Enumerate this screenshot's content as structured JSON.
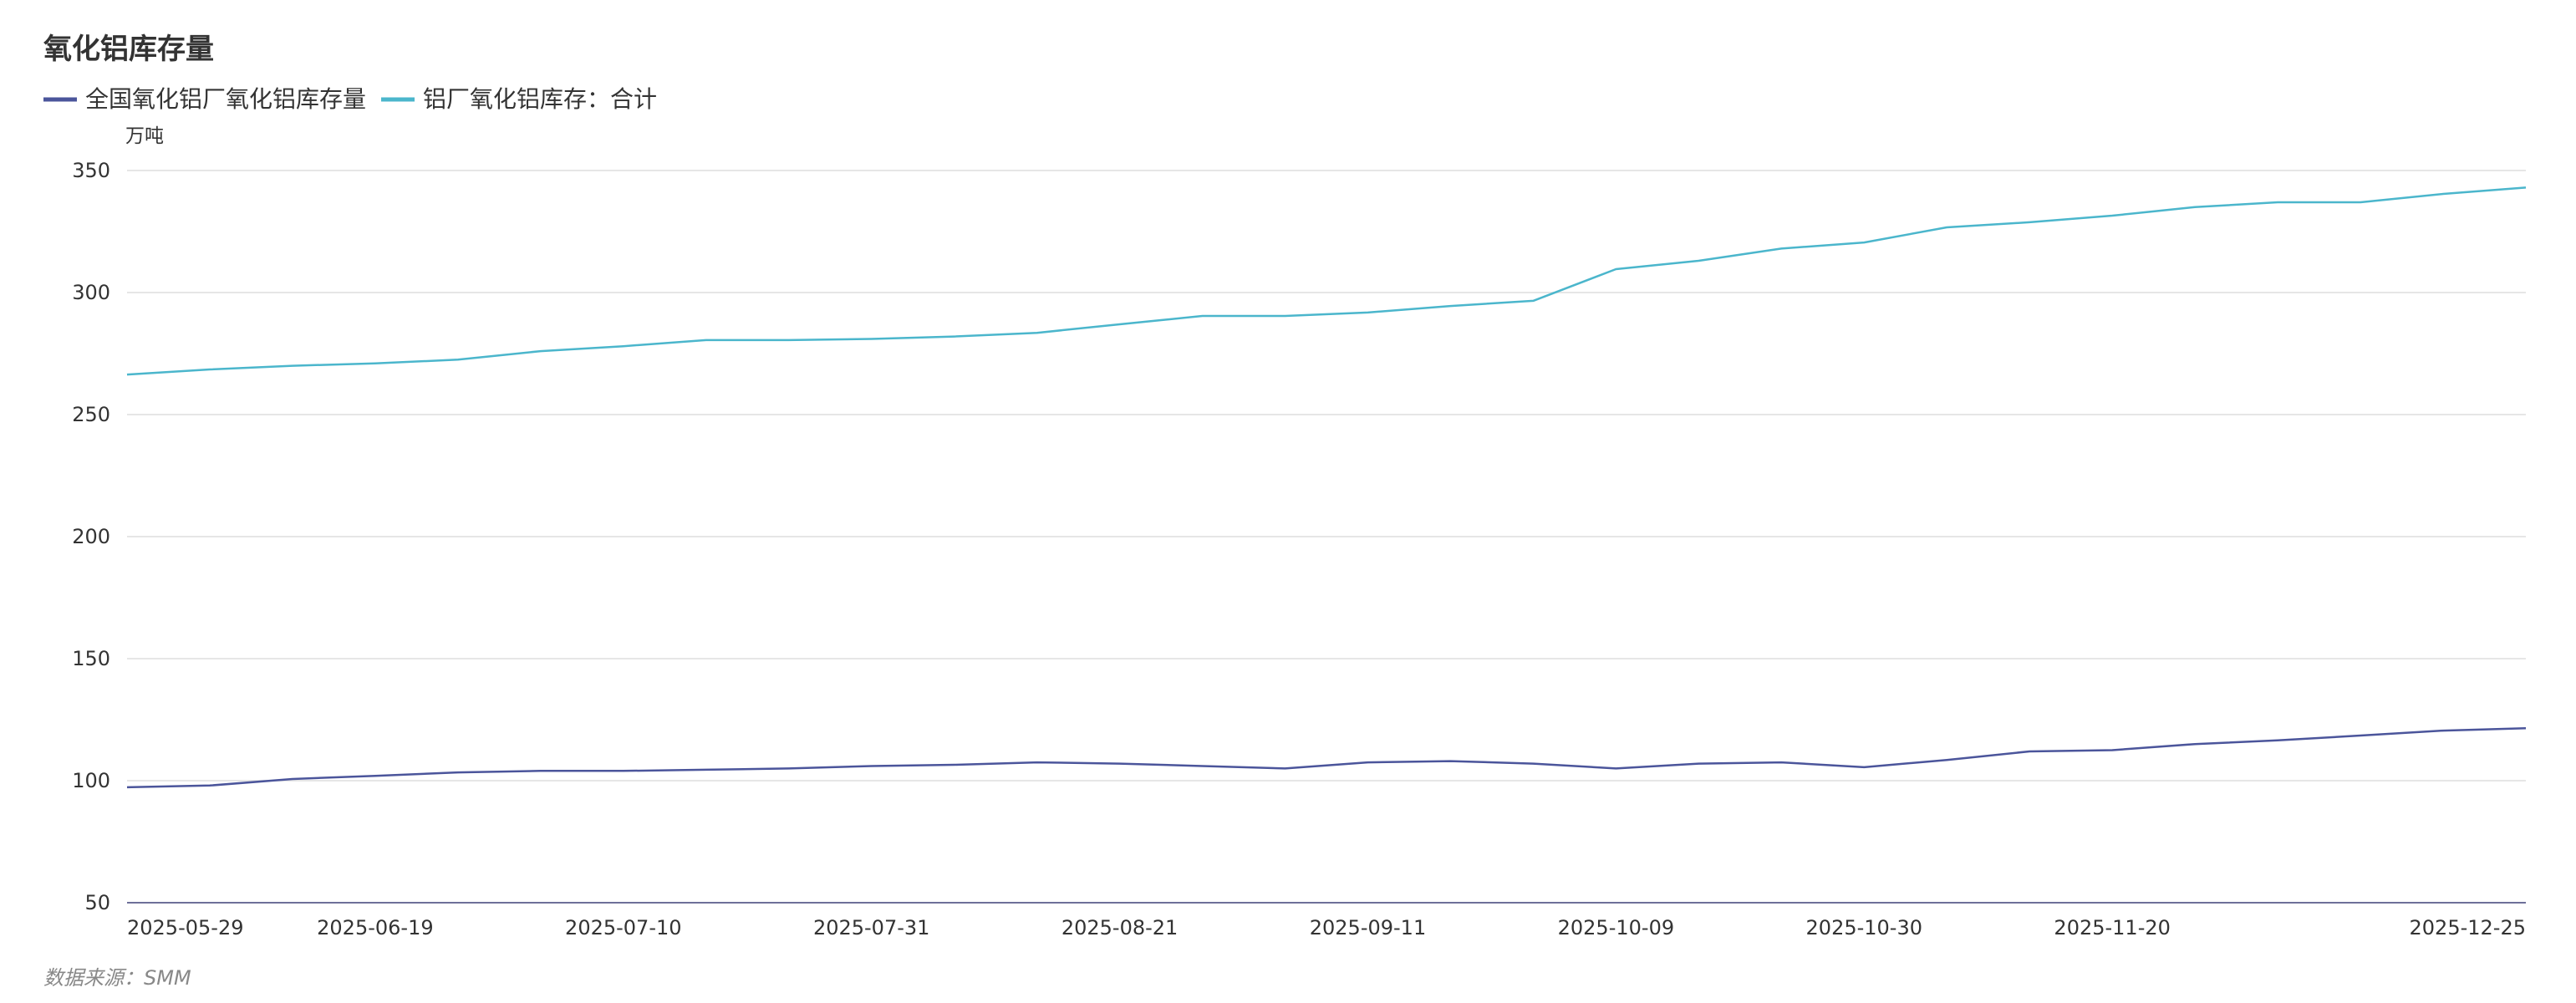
{
  "chart_data": {
    "type": "line",
    "title": "氧化铝库存量",
    "unit_label": "万吨",
    "source": "数据来源：SMM",
    "ylim": [
      50,
      350
    ],
    "yticks": [
      50,
      100,
      150,
      200,
      250,
      300,
      350
    ],
    "grid": true,
    "legend_position": "top-left",
    "x": [
      "2025-05-29",
      "2025-06-05",
      "2025-06-12",
      "2025-06-19",
      "2025-06-26",
      "2025-07-03",
      "2025-07-10",
      "2025-07-17",
      "2025-07-24",
      "2025-07-31",
      "2025-08-07",
      "2025-08-14",
      "2025-08-21",
      "2025-08-28",
      "2025-09-04",
      "2025-09-11",
      "2025-09-18",
      "2025-09-25",
      "2025-10-09",
      "2025-10-16",
      "2025-10-23",
      "2025-10-30",
      "2025-11-06",
      "2025-11-13",
      "2025-11-20",
      "2025-11-27",
      "2025-12-04",
      "2025-12-11",
      "2025-12-18",
      "2025-12-25"
    ],
    "xtick_labels": [
      "2025-05-29",
      "2025-06-19",
      "2025-07-10",
      "2025-07-31",
      "2025-08-21",
      "2025-09-11",
      "2025-10-09",
      "2025-10-30",
      "2025-11-20",
      "2025-12-25"
    ],
    "series": [
      {
        "name": "全国氧化铝厂氧化铝库存量",
        "color": "#4b559b",
        "values": [
          97.3,
          98,
          100.7,
          102,
          103.4,
          104,
          104,
          104.5,
          105,
          106,
          106.5,
          107.5,
          107,
          106,
          105,
          107.5,
          108,
          107,
          105,
          107,
          107.5,
          105.5,
          108.5,
          112,
          112.5,
          115,
          116.5,
          118.5,
          120.5,
          121.5
        ]
      },
      {
        "name": "铝厂氧化铝库存：合计",
        "color": "#4bb6cc",
        "values": [
          266.4,
          268.5,
          270,
          271,
          272.5,
          276,
          278,
          280.5,
          280.5,
          281,
          282,
          283.5,
          287,
          290.4,
          290.4,
          291.8,
          294.5,
          296.6,
          309.6,
          313,
          318,
          320.5,
          326.7,
          328.8,
          331.5,
          335,
          337,
          337,
          340.4,
          343
        ]
      }
    ]
  }
}
